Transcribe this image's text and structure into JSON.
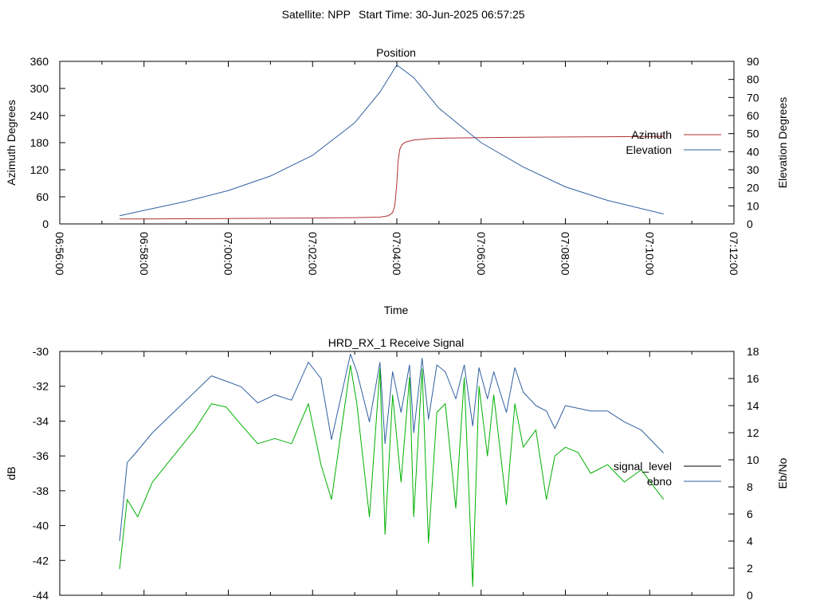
{
  "header": {
    "satellite": "Satellite: NPP",
    "start_time": "Start Time: 30-Jun-2025 06:57:25"
  },
  "chart_data": [
    {
      "type": "line",
      "title": "Position",
      "xlabel": "Time",
      "ylabel": "Azimuth Degrees",
      "y2label": "Elevation Degrees",
      "x_ticks": [
        "06:56:00",
        "06:58:00",
        "07:00:00",
        "07:02:00",
        "07:04:00",
        "07:06:00",
        "07:08:00",
        "07:10:00",
        "07:12:00"
      ],
      "xlim_minutes": [
        0,
        16
      ],
      "ylim": [
        0,
        360
      ],
      "y_ticks": [
        0,
        60,
        120,
        180,
        240,
        300,
        360
      ],
      "y2lim": [
        0,
        90
      ],
      "y2_ticks": [
        0,
        10,
        20,
        30,
        40,
        50,
        60,
        70,
        80,
        90
      ],
      "grid": false,
      "legend": "right",
      "series": [
        {
          "name": "Azimuth",
          "axis": "left",
          "color": "#b03030",
          "x_minutes": [
            1.42,
            2.0,
            3.0,
            4.0,
            5.0,
            6.0,
            7.0,
            7.6,
            7.8,
            7.9,
            7.95,
            8.0,
            8.03,
            8.07,
            8.12,
            8.2,
            8.4,
            8.8,
            9.2,
            10.0,
            11.0,
            12.0,
            13.0,
            14.33
          ],
          "values": [
            11,
            11,
            11.5,
            12,
            12.5,
            13,
            14,
            15,
            18,
            25,
            40,
            90,
            140,
            165,
            175,
            181,
            186,
            189,
            190,
            191,
            192,
            192.5,
            193,
            194
          ]
        },
        {
          "name": "Elevation",
          "axis": "right",
          "color": "#3060a0",
          "x_minutes": [
            1.42,
            2.0,
            3.0,
            4.0,
            5.0,
            6.0,
            7.0,
            7.6,
            8.0,
            8.4,
            9.0,
            10.0,
            11.0,
            12.0,
            13.0,
            14.33
          ],
          "values": [
            4.5,
            7.5,
            12.5,
            18.5,
            26.5,
            38,
            56,
            73,
            88,
            81,
            64,
            45,
            31.5,
            20.5,
            13,
            5.5
          ]
        }
      ]
    },
    {
      "type": "line",
      "title": "HRD_RX_1 Receive Signal",
      "ylabel": "dB",
      "y2label": "Eb/No",
      "xlim_minutes": [
        0,
        16
      ],
      "ylim": [
        -44,
        -30
      ],
      "y_ticks": [
        -44,
        -42,
        -40,
        -38,
        -36,
        -34,
        -32,
        -30
      ],
      "y2lim": [
        0,
        18
      ],
      "y2_ticks": [
        0,
        2,
        4,
        6,
        8,
        10,
        12,
        14,
        16,
        18
      ],
      "grid": false,
      "legend": "right",
      "series": [
        {
          "name": "signal_level",
          "axis": "left",
          "color": "#000000",
          "x_minutes": [],
          "values": []
        },
        {
          "name": "ebno",
          "axis": "right",
          "color": "#3060a0",
          "x_minutes": [
            1.42,
            1.6,
            1.8,
            2.2,
            2.7,
            3.2,
            3.6,
            3.95,
            4.3,
            4.7,
            5.1,
            5.5,
            5.9,
            6.2,
            6.45,
            6.9,
            7.05,
            7.35,
            7.6,
            7.72,
            7.9,
            8.1,
            8.3,
            8.4,
            8.6,
            8.75,
            8.95,
            9.15,
            9.4,
            9.6,
            9.8,
            9.95,
            10.15,
            10.3,
            10.6,
            10.8,
            11.0,
            11.3,
            11.55,
            11.75,
            12.0,
            12.3,
            12.6,
            13.0,
            13.4,
            13.8,
            14.33
          ],
          "values": [
            4,
            9.8,
            10.5,
            12,
            13.5,
            15,
            16.2,
            15.8,
            15.4,
            14.2,
            14.8,
            14.4,
            17.2,
            16.0,
            11.5,
            17.8,
            16.5,
            12.8,
            17.2,
            11.2,
            16.5,
            13.5,
            17.0,
            12.0,
            17.5,
            13.0,
            17.0,
            16.5,
            14.5,
            17.0,
            12.5,
            16.8,
            14.5,
            16.5,
            13.5,
            16.8,
            15.0,
            14.0,
            13.6,
            12.3,
            14.0,
            13.8,
            13.6,
            13.6,
            12.8,
            12.2,
            10.5
          ]
        },
        {
          "name": "",
          "axis": "left",
          "color": "#00b000",
          "x_minutes": [
            1.42,
            1.6,
            1.85,
            2.2,
            2.7,
            3.2,
            3.6,
            3.95,
            4.3,
            4.7,
            5.1,
            5.5,
            5.9,
            6.2,
            6.45,
            6.9,
            7.05,
            7.35,
            7.6,
            7.72,
            7.9,
            8.1,
            8.3,
            8.4,
            8.6,
            8.75,
            8.95,
            9.15,
            9.4,
            9.6,
            9.8,
            9.95,
            10.15,
            10.3,
            10.6,
            10.8,
            11.0,
            11.3,
            11.55,
            11.75,
            12.0,
            12.3,
            12.6,
            13.0,
            13.4,
            13.8,
            14.33
          ],
          "values": [
            -42.5,
            -38.5,
            -39.5,
            -37.5,
            -36.0,
            -34.5,
            -33.0,
            -33.2,
            -34.2,
            -35.3,
            -35.0,
            -35.3,
            -33.0,
            -36.5,
            -38.5,
            -30.8,
            -33.0,
            -39.5,
            -31.0,
            -40.5,
            -32.5,
            -37.5,
            -31.5,
            -39.5,
            -31.0,
            -41.0,
            -33.5,
            -33.0,
            -39.0,
            -31.5,
            -43.5,
            -32.0,
            -36.0,
            -32.5,
            -38.8,
            -33.0,
            -35.5,
            -34.5,
            -38.5,
            -36.0,
            -35.5,
            -35.8,
            -37.0,
            -36.5,
            -37.5,
            -36.8,
            -38.5
          ]
        }
      ]
    }
  ]
}
